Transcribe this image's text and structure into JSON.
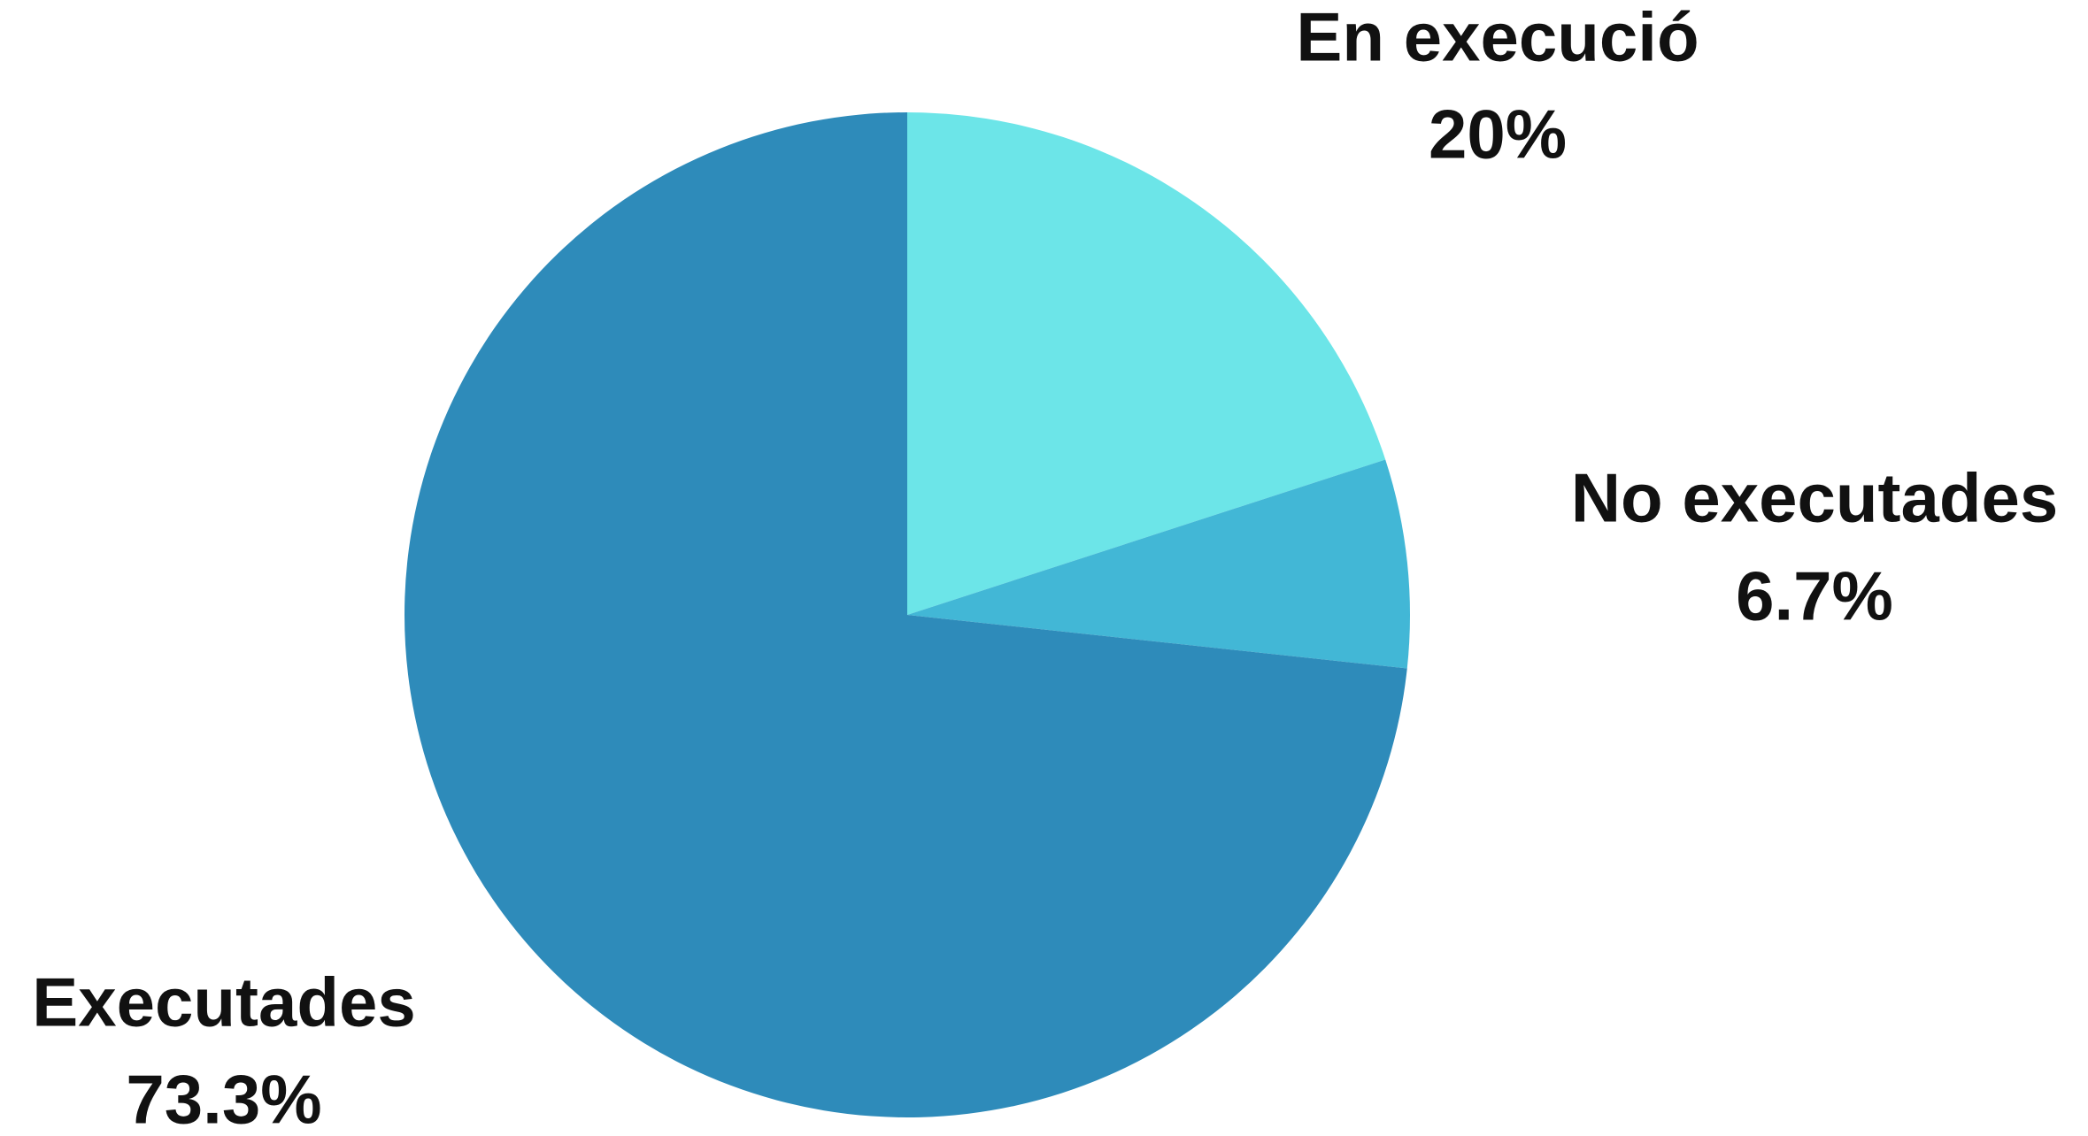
{
  "chart_data": {
    "type": "pie",
    "categories": [
      "En execució",
      "No executades",
      "Executades"
    ],
    "values": [
      20,
      6.7,
      73.3
    ],
    "value_labels": [
      "20%",
      "6.7%",
      "73.3%"
    ],
    "colors": [
      "#6ce5e8",
      "#42b7d6",
      "#2e8bba"
    ]
  }
}
